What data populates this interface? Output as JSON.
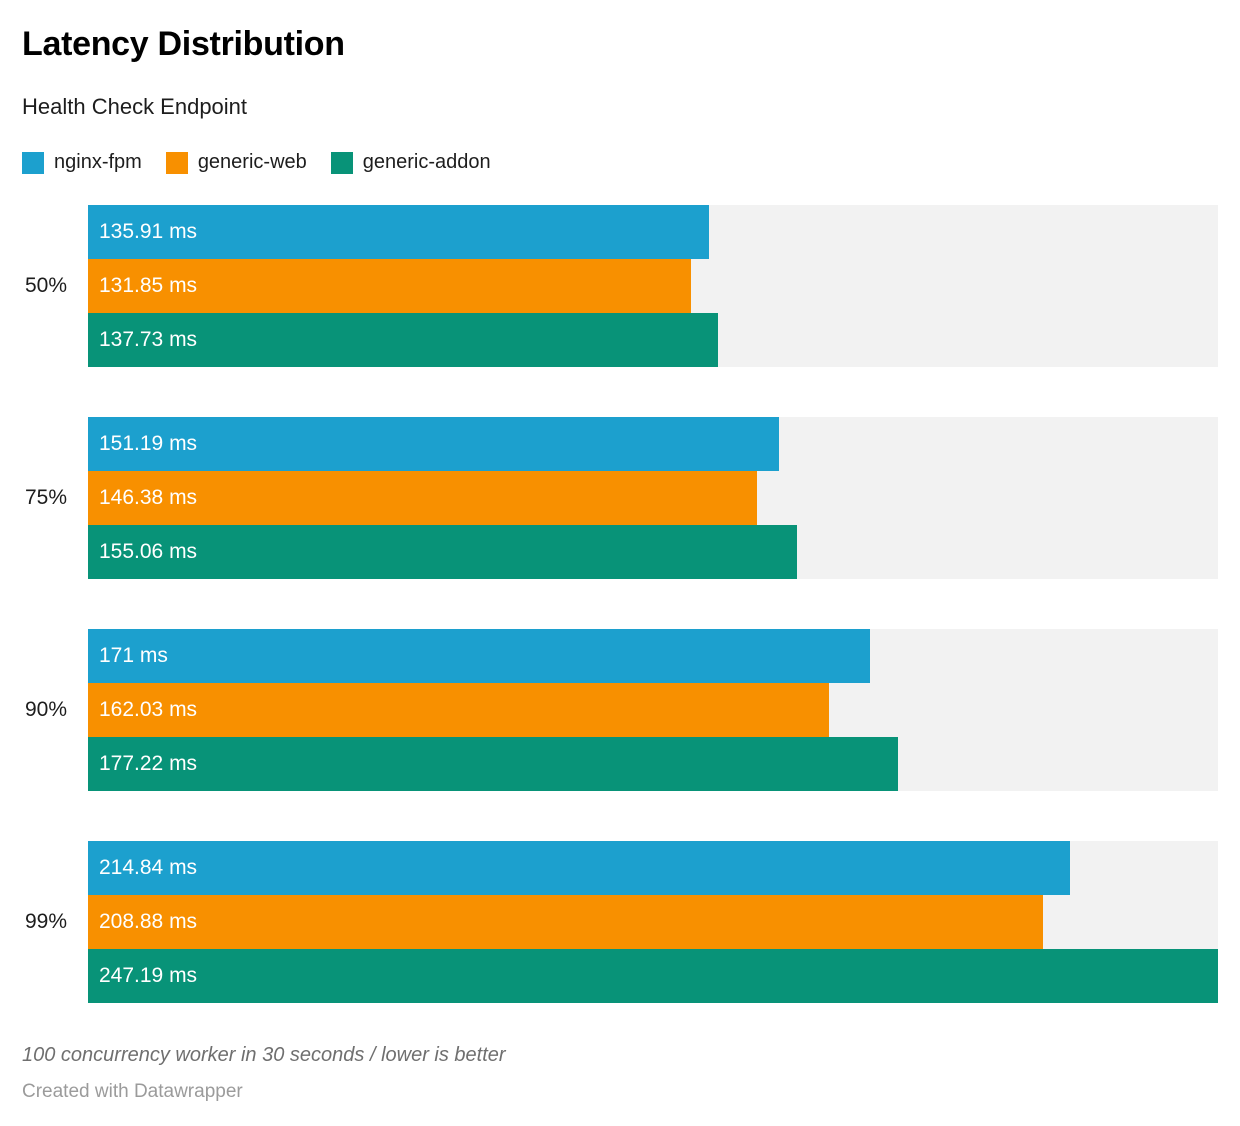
{
  "header": {
    "title": "Latency Distribution",
    "subtitle": "Health Check Endpoint"
  },
  "chart_data": {
    "type": "bar",
    "orientation": "horizontal",
    "title": "Latency Distribution",
    "subtitle": "Health Check Endpoint",
    "categories": [
      "50%",
      "75%",
      "90%",
      "99%"
    ],
    "series": [
      {
        "name": "nginx-fpm",
        "color": "#1ca0ce",
        "values": [
          135.91,
          151.19,
          171,
          214.84
        ],
        "labels": [
          "135.91 ms",
          "151.19 ms",
          "171 ms",
          "214.84 ms"
        ]
      },
      {
        "name": "generic-web",
        "color": "#f89000",
        "values": [
          131.85,
          146.38,
          162.03,
          208.88
        ],
        "labels": [
          "131.85 ms",
          "146.38 ms",
          "162.03 ms",
          "208.88 ms"
        ]
      },
      {
        "name": "generic-addon",
        "color": "#089378",
        "values": [
          137.73,
          155.06,
          177.22,
          247.19
        ],
        "labels": [
          "137.73 ms",
          "155.06 ms",
          "177.22 ms",
          "247.19 ms"
        ]
      }
    ],
    "unit": "ms",
    "xlim": [
      0,
      247.19
    ],
    "grid": false,
    "track_color": "#f2f2f2",
    "legend_position": "top",
    "value_label_color": "#ffffff"
  },
  "footer": {
    "note": "100 concurrency worker in 30 seconds / lower is better",
    "attribution": "Created with Datawrapper"
  }
}
